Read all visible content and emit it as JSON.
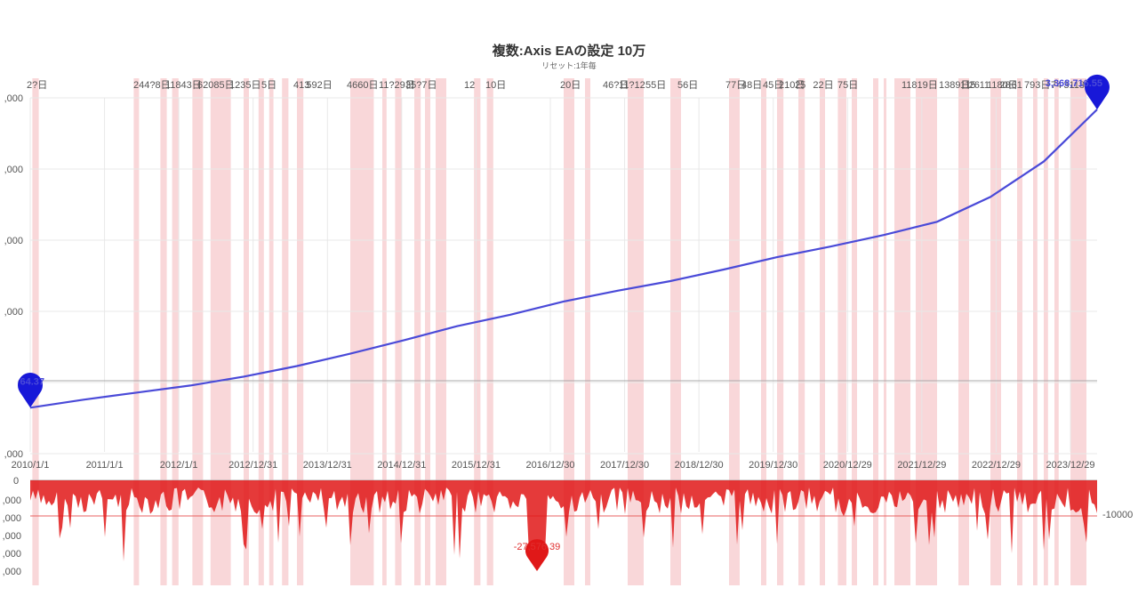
{
  "colors": {
    "equity_line": "#4a4ad8",
    "marker": "#1818d8",
    "drawdown": "#e01818",
    "stagnation_band": "#f7c9cc",
    "grid": "#e8e8e8"
  },
  "chart_data": {
    "type": "line",
    "title": "複数:Axis EAの設定 10万",
    "subtitle": "リセット:1年毎",
    "x_tick_labels": [
      "2010/1/1",
      "2011/1/1",
      "2012/1/1",
      "2012/12/31",
      "2013/12/31",
      "2014/12/31",
      "2015/12/31",
      "2016/12/30",
      "2017/12/30",
      "2018/12/30",
      "2019/12/30",
      "2020/12/29",
      "2021/12/29",
      "2022/12/29",
      "2023/12/29"
    ],
    "y_tick_labels": [
      ",000",
      ",000",
      ",000",
      ",000",
      "0",
      ",000"
    ],
    "top_labels": [
      "2?日",
      "244?8日",
      "11843日",
      "62085日",
      "1235日",
      "5日",
      "413",
      "592日",
      "4660日",
      "11?29日",
      "35?7日",
      "12",
      "10日",
      "20日",
      "46?日",
      "11?12",
      "55日",
      "56日",
      "77日",
      "48日",
      "45日",
      "210日",
      "25",
      "22日",
      "75日",
      "11819日",
      "1389日",
      "115",
      "26",
      "11",
      "1180日",
      "28",
      "61",
      "793日",
      "74",
      "3118日"
    ],
    "start_value_label": "64.37",
    "end_value_label": "3,368,716.55",
    "equity": {
      "x": [
        0,
        0.05,
        0.1,
        0.15,
        0.2,
        0.25,
        0.3,
        0.35,
        0.4,
        0.45,
        0.5,
        0.55,
        0.6,
        0.65,
        0.7,
        0.75,
        0.8,
        0.85,
        0.9,
        0.95,
        1.0
      ],
      "y": [
        0,
        90000,
        170000,
        250000,
        350000,
        470000,
        610000,
        760000,
        920000,
        1050000,
        1200000,
        1320000,
        1430000,
        1560000,
        1700000,
        1820000,
        1950000,
        2100000,
        2380000,
        2780000,
        3368716.55
      ]
    },
    "ylim": [
      -500000,
      3500000
    ],
    "drawdown": {
      "min_value_label": "-27,576.39",
      "right_axis_label": "-10000",
      "top_label": "0",
      "left_tick_labels": [
        ",000",
        ",000",
        ",000",
        ",000",
        ",000"
      ]
    },
    "grid": true
  }
}
